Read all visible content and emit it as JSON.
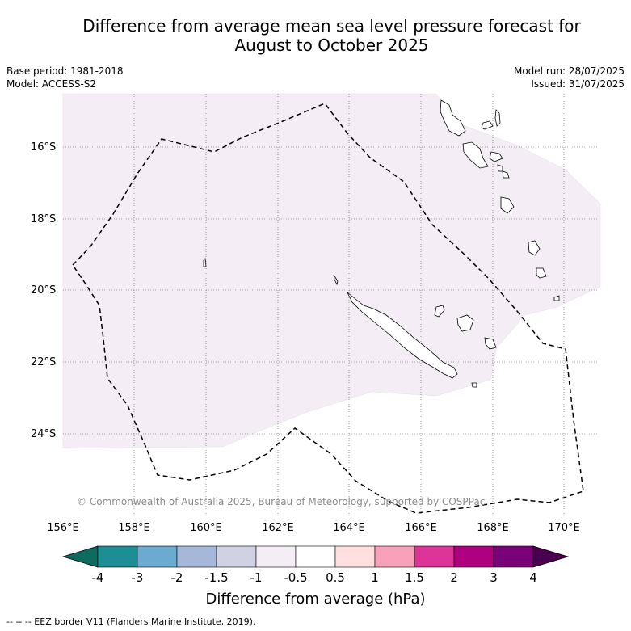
{
  "title_line1": "Difference from average mean sea level pressure forecast for",
  "title_line2": "August to October 2025",
  "base_period": "Base period: 1981-2018",
  "model": "Model: ACCESS-S2",
  "model_run": "Model run: 28/07/2025",
  "issued": "Issued: 31/07/2025",
  "copyright": "© Commonwealth of Australia 2025, Bureau of Meteorology, supported by COSPPac",
  "lat_labels": [
    "16°S",
    "18°S",
    "20°S",
    "22°S",
    "24°S"
  ],
  "lon_labels": [
    "156°E",
    "158°E",
    "160°E",
    "162°E",
    "164°E",
    "166°E",
    "168°E",
    "170°E"
  ],
  "colorbar": {
    "title": "Difference from average (hPa)",
    "ticks": [
      "-4",
      "-3",
      "-2",
      "-1.5",
      "-1",
      "-0.5",
      "0.5",
      "1",
      "1.5",
      "2",
      "3",
      "4"
    ],
    "colors": [
      "#1b8f93",
      "#6aabcf",
      "#a6b8d9",
      "#d0d1e3",
      "#f4edf6",
      "#ffffff",
      "#ffdfdf",
      "#f9a1bb",
      "#dd3497",
      "#ad0180",
      "#7a0177"
    ],
    "under_color": "#0d6b5f",
    "over_color": "#4a004f"
  },
  "anomaly_fill_color": "#f4edf6",
  "footer": "--  --  -- EEZ border V11 (Flanders Marine Institute, 2019)."
}
